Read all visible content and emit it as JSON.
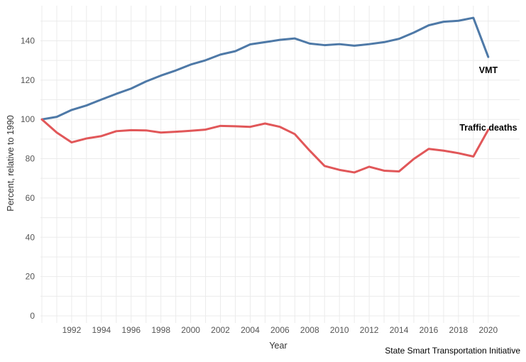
{
  "chart_data": {
    "type": "line",
    "xlabel": "Year",
    "ylabel": "Percent, relative to 1990",
    "xlim": [
      1990,
      2021
    ],
    "ylim": [
      -3,
      157
    ],
    "x_ticks": [
      1992,
      1994,
      1996,
      1998,
      2000,
      2002,
      2004,
      2006,
      2008,
      2010,
      2012,
      2014,
      2016,
      2018,
      2020
    ],
    "y_ticks": [
      0,
      20,
      40,
      60,
      80,
      100,
      120,
      140
    ],
    "grid": true,
    "x": [
      1990,
      1991,
      1992,
      1993,
      1994,
      1995,
      1996,
      1997,
      1998,
      1999,
      2000,
      2001,
      2002,
      2003,
      2004,
      2005,
      2006,
      2007,
      2008,
      2009,
      2010,
      2011,
      2012,
      2013,
      2014,
      2015,
      2016,
      2017,
      2018,
      2019,
      2020
    ],
    "series": [
      {
        "name": "VMT",
        "color": "#4e79a7",
        "values": [
          100,
          101.3,
          104.8,
          107.1,
          110.1,
          113.0,
          115.7,
          119.3,
          122.3,
          124.9,
          127.9,
          130.1,
          133.0,
          134.7,
          138.2,
          139.3,
          140.5,
          141.2,
          138.6,
          137.8,
          138.3,
          137.5,
          138.3,
          139.3,
          141.0,
          144.2,
          147.9,
          149.7,
          150.2,
          151.7,
          131.8
        ]
      },
      {
        "name": "Traffic deaths",
        "color": "#e15759",
        "values": [
          100,
          93.3,
          88.3,
          90.3,
          91.5,
          94.0,
          94.5,
          94.4,
          93.3,
          93.7,
          94.2,
          94.8,
          96.7,
          96.5,
          96.2,
          97.9,
          96.2,
          92.5,
          84.1,
          76.3,
          74.3,
          73.0,
          75.9,
          73.9,
          73.5,
          79.9,
          85.0,
          84.1,
          82.8,
          81.1,
          94.7
        ]
      }
    ],
    "annotations": {
      "source": "State Smart Transportation Initiative"
    }
  }
}
